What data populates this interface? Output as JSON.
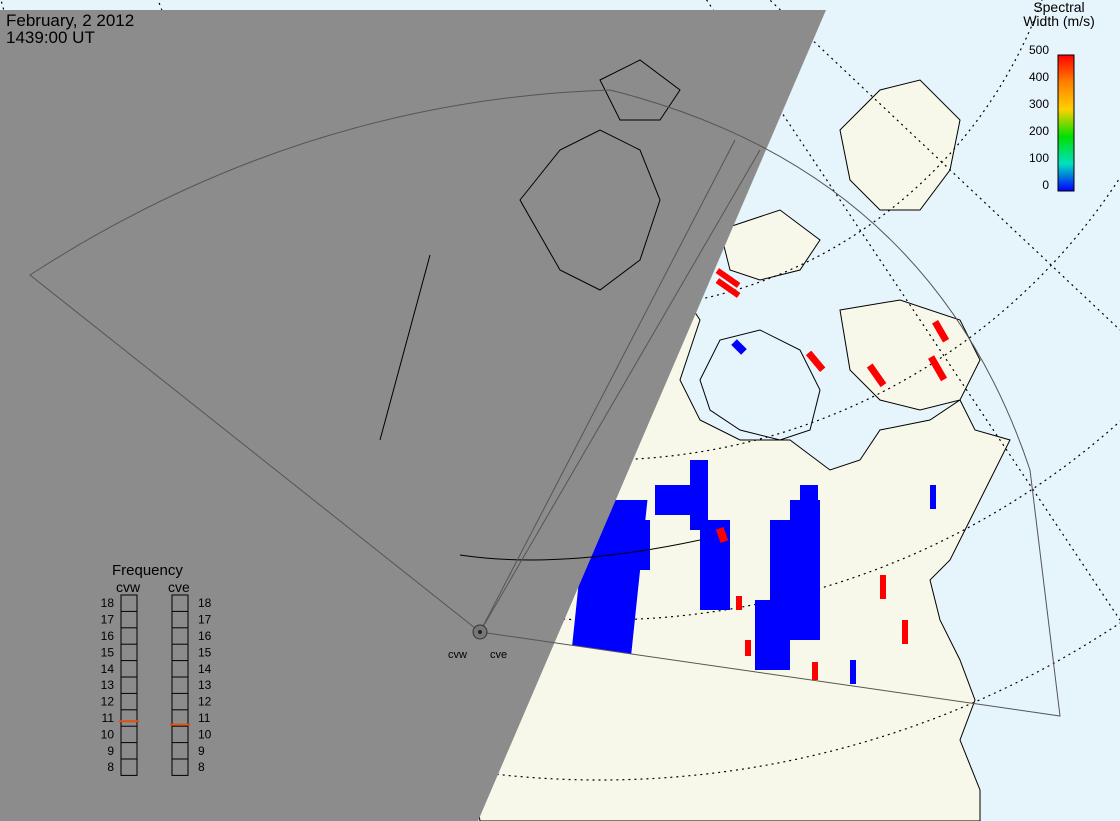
{
  "header": {
    "date": "February, 2 2012",
    "time": "1439:00 UT"
  },
  "colorbar": {
    "title_line1": "Spectral",
    "title_line2": "Width (m/s)",
    "ticks": [
      "500",
      "400",
      "300",
      "200",
      "100",
      "0"
    ],
    "colors": [
      "#ff0000",
      "#ff8000",
      "#ffd000",
      "#00e000",
      "#00e0c0",
      "#0000ff"
    ]
  },
  "radars": {
    "west": "cvw",
    "east": "cve"
  },
  "frequency": {
    "title": "Frequency",
    "col_west": "cvw",
    "col_east": "cve",
    "levels": [
      "18",
      "17",
      "16",
      "15",
      "14",
      "13",
      "12",
      "11",
      "10",
      "9",
      "8"
    ],
    "cvw_value": 10.8,
    "cve_value": 10.6
  },
  "colors": {
    "night_shade": "#8c8c8c",
    "land": "#f8f8ea",
    "ocean": "#e6f4fb",
    "low_width": "#0000ff",
    "high_width": "#ff0000"
  }
}
